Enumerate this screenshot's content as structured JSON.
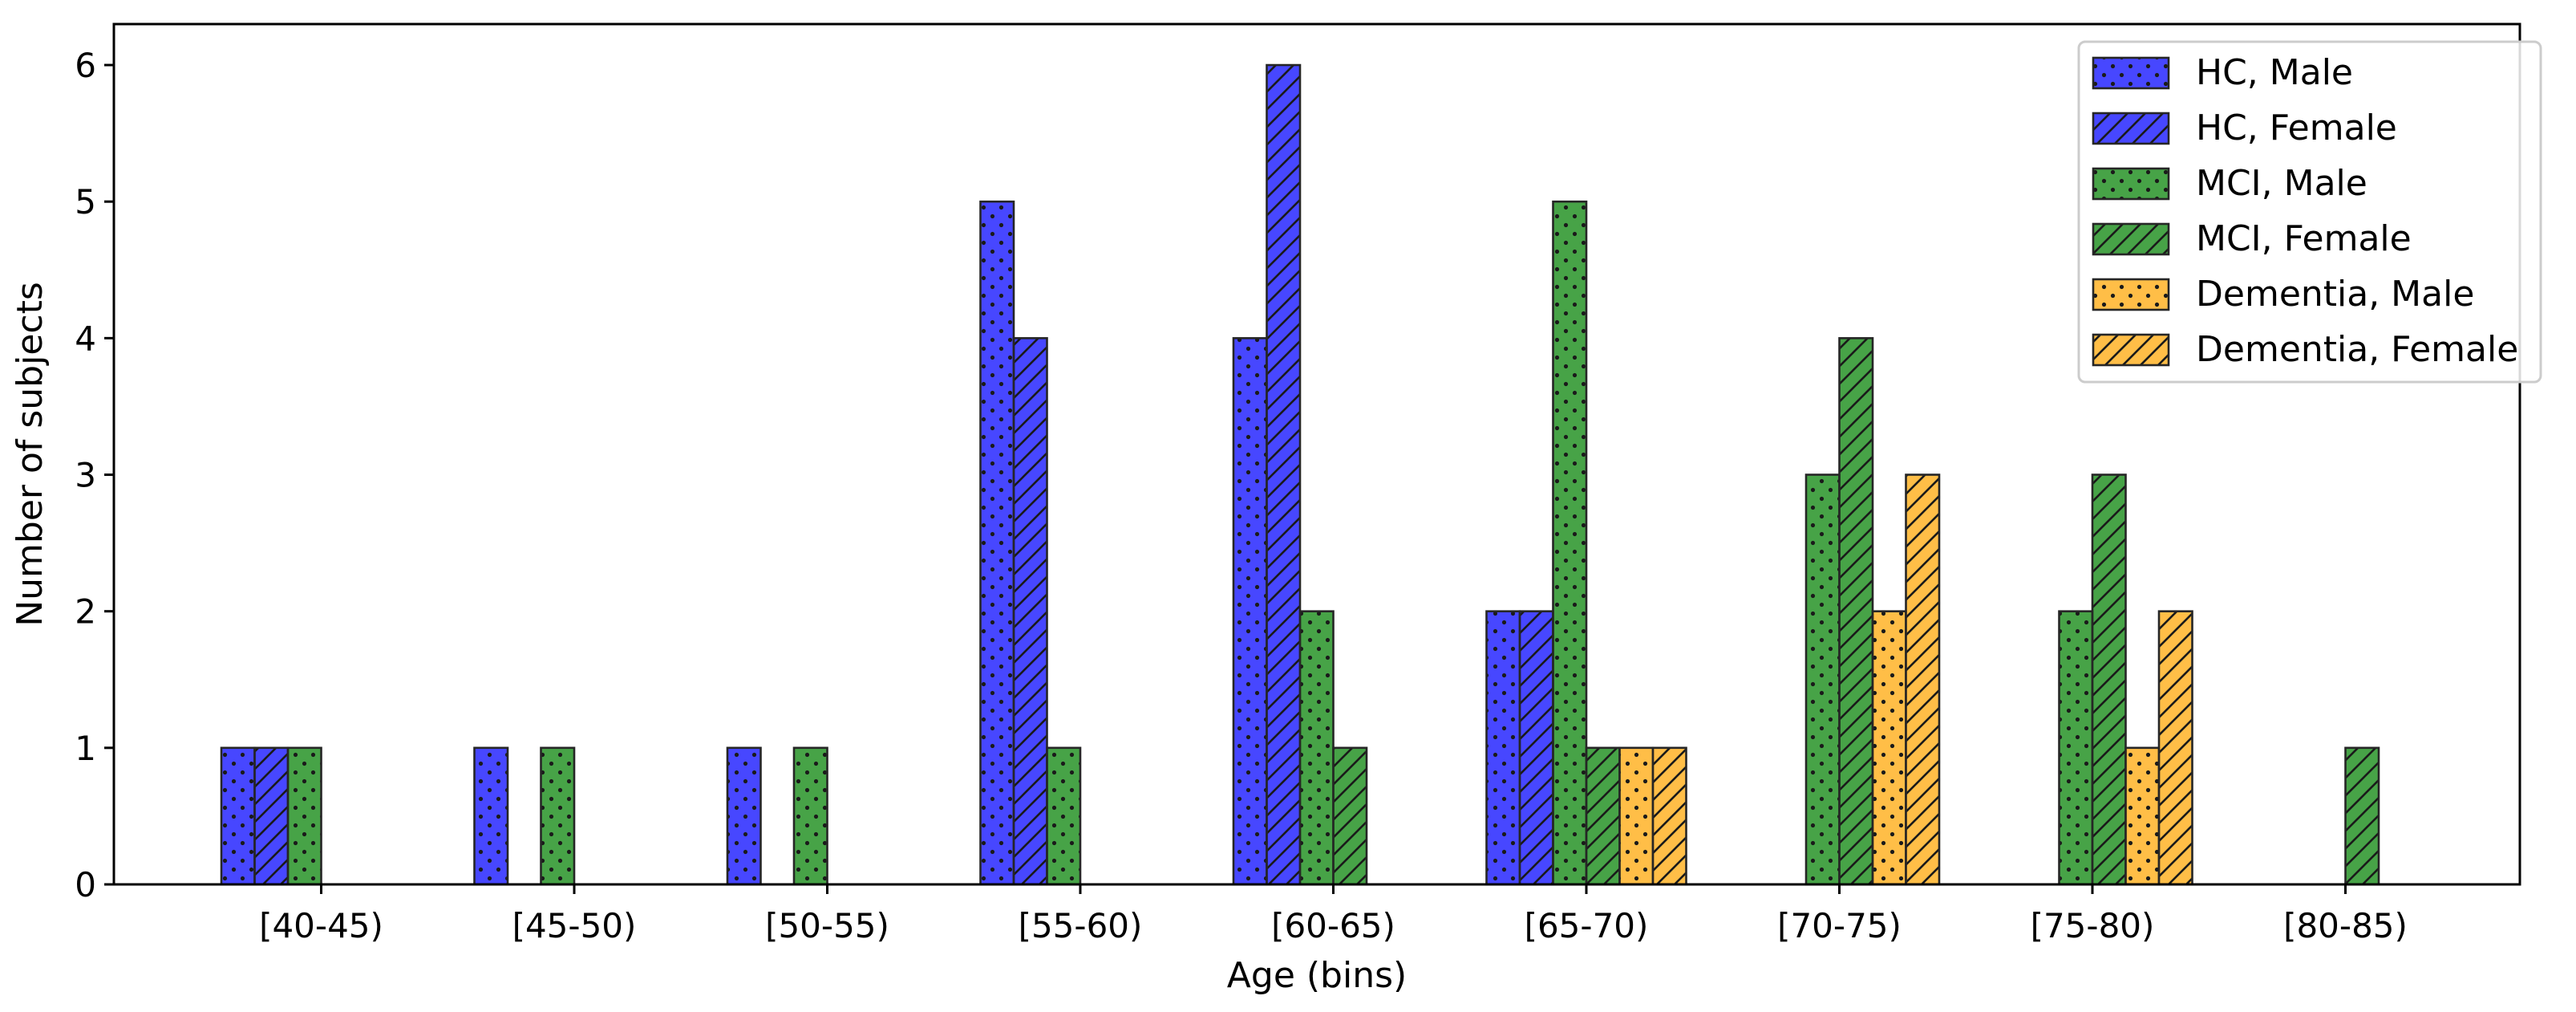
{
  "chart_data": {
    "type": "bar",
    "title": "",
    "xlabel": "Age (bins)",
    "ylabel": "Number of subjects",
    "ylim": [
      0,
      6.3
    ],
    "yticks": [
      0,
      1,
      2,
      3,
      4,
      5,
      6
    ],
    "grid": false,
    "legend_position": "top-right",
    "categories": [
      "[40-45)",
      "[45-50)",
      "[50-55)",
      "[55-60)",
      "[60-65)",
      "[65-70)",
      "[70-75)",
      "[75-80)",
      "[80-85)"
    ],
    "series": [
      {
        "name": "HC, Male",
        "color": "#0000ff",
        "hatch": "dots",
        "values": [
          1,
          1,
          1,
          5,
          4,
          2,
          0,
          0,
          0
        ]
      },
      {
        "name": "HC, Female",
        "color": "#0000ff",
        "hatch": "slash",
        "values": [
          1,
          0,
          0,
          4,
          6,
          2,
          0,
          0,
          0
        ]
      },
      {
        "name": "MCI, Male",
        "color": "#008000",
        "hatch": "dots",
        "values": [
          1,
          1,
          1,
          1,
          2,
          5,
          3,
          2,
          0
        ]
      },
      {
        "name": "MCI, Female",
        "color": "#008000",
        "hatch": "slash",
        "values": [
          0,
          0,
          0,
          0,
          1,
          1,
          4,
          3,
          1
        ]
      },
      {
        "name": "Dementia, Male",
        "color": "#ffa500",
        "hatch": "dots",
        "values": [
          0,
          0,
          0,
          0,
          0,
          1,
          2,
          1,
          0
        ]
      },
      {
        "name": "Dementia, Female",
        "color": "#ffa500",
        "hatch": "slash",
        "values": [
          0,
          0,
          0,
          0,
          0,
          1,
          3,
          2,
          0
        ]
      }
    ]
  }
}
